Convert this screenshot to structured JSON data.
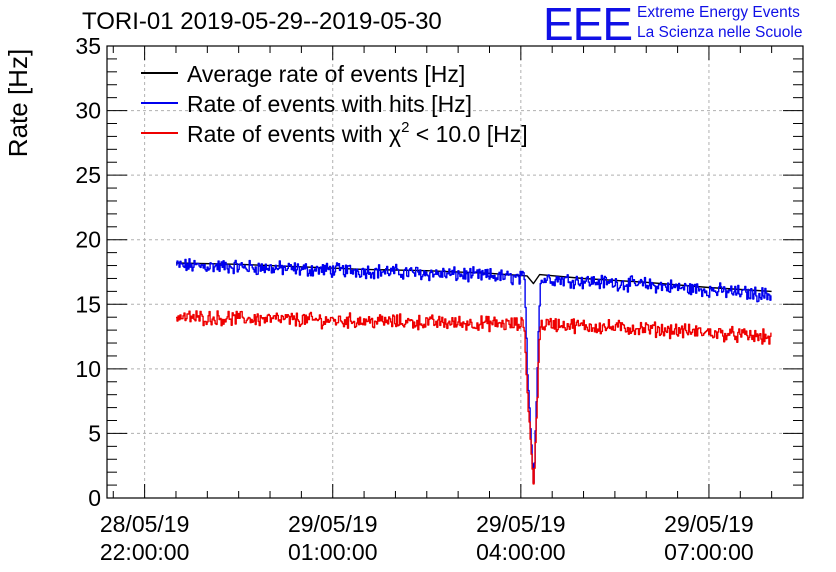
{
  "chart_data": {
    "type": "line",
    "title": "TORI-01 2019-05-29--2019-05-30",
    "xlabel": "",
    "ylabel": "Rate [Hz]",
    "ylim": [
      0,
      35
    ],
    "yticks": [
      0,
      5,
      10,
      15,
      20,
      25,
      30,
      35
    ],
    "xlim_hours": [
      -0.6,
      10.5
    ],
    "xticks": [
      {
        "t": 0,
        "date": "28/05/19",
        "time": "22:00:00"
      },
      {
        "t": 3,
        "date": "29/05/19",
        "time": "01:00:00"
      },
      {
        "t": 6,
        "date": "29/05/19",
        "time": "04:00:00"
      },
      {
        "t": 9,
        "date": "29/05/19",
        "time": "07:00:00"
      }
    ],
    "grid": true,
    "legend_position": "top-left",
    "series": [
      {
        "name": "Average rate of events [Hz]",
        "color": "#000000",
        "kind": "smooth",
        "x": [
          0.5,
          1.5,
          2.5,
          3.5,
          4.5,
          5.5,
          6.1,
          6.2,
          6.3,
          7.0,
          8.0,
          9.0,
          10.0
        ],
        "y": [
          18.2,
          18.1,
          17.9,
          17.7,
          17.6,
          17.4,
          17.2,
          16.6,
          17.3,
          17.0,
          16.7,
          16.3,
          16.0
        ]
      },
      {
        "name": "Rate of events with hits [Hz]",
        "color": "#0000ee",
        "kind": "noisy",
        "amplitude": 0.45,
        "x": [
          0.5,
          1.5,
          2.5,
          3.5,
          4.5,
          5.5,
          6.05,
          6.1,
          6.2,
          6.3,
          6.4,
          7.0,
          8.0,
          9.0,
          10.0
        ],
        "y": [
          18.0,
          17.9,
          17.7,
          17.6,
          17.4,
          17.2,
          17.0,
          10.0,
          0.8,
          16.7,
          17.0,
          16.8,
          16.5,
          16.1,
          15.7
        ]
      },
      {
        "name": "Rate of events with χ² < 10.0 [Hz]",
        "color": "#ee0000",
        "kind": "noisy",
        "amplitude": 0.45,
        "x": [
          0.5,
          1.5,
          2.5,
          3.5,
          4.5,
          5.5,
          6.05,
          6.1,
          6.2,
          6.3,
          6.4,
          7.0,
          8.0,
          9.0,
          10.0
        ],
        "y": [
          14.0,
          13.9,
          13.8,
          13.7,
          13.6,
          13.5,
          13.4,
          8.0,
          0.8,
          13.3,
          13.5,
          13.3,
          13.1,
          12.8,
          12.4
        ]
      }
    ]
  },
  "legend": {
    "average": "Average rate of events [Hz]",
    "hits": "Rate of events with hits [Hz]",
    "chi2_prefix": "Rate of events with ",
    "chi2_symbol": "χ",
    "chi2_power": "2",
    "chi2_suffix": " < 10.0 [Hz]"
  },
  "logo": {
    "mark": "EEE",
    "line1": "Extreme Energy Events",
    "line2": "La Scienza nelle Scuole"
  }
}
